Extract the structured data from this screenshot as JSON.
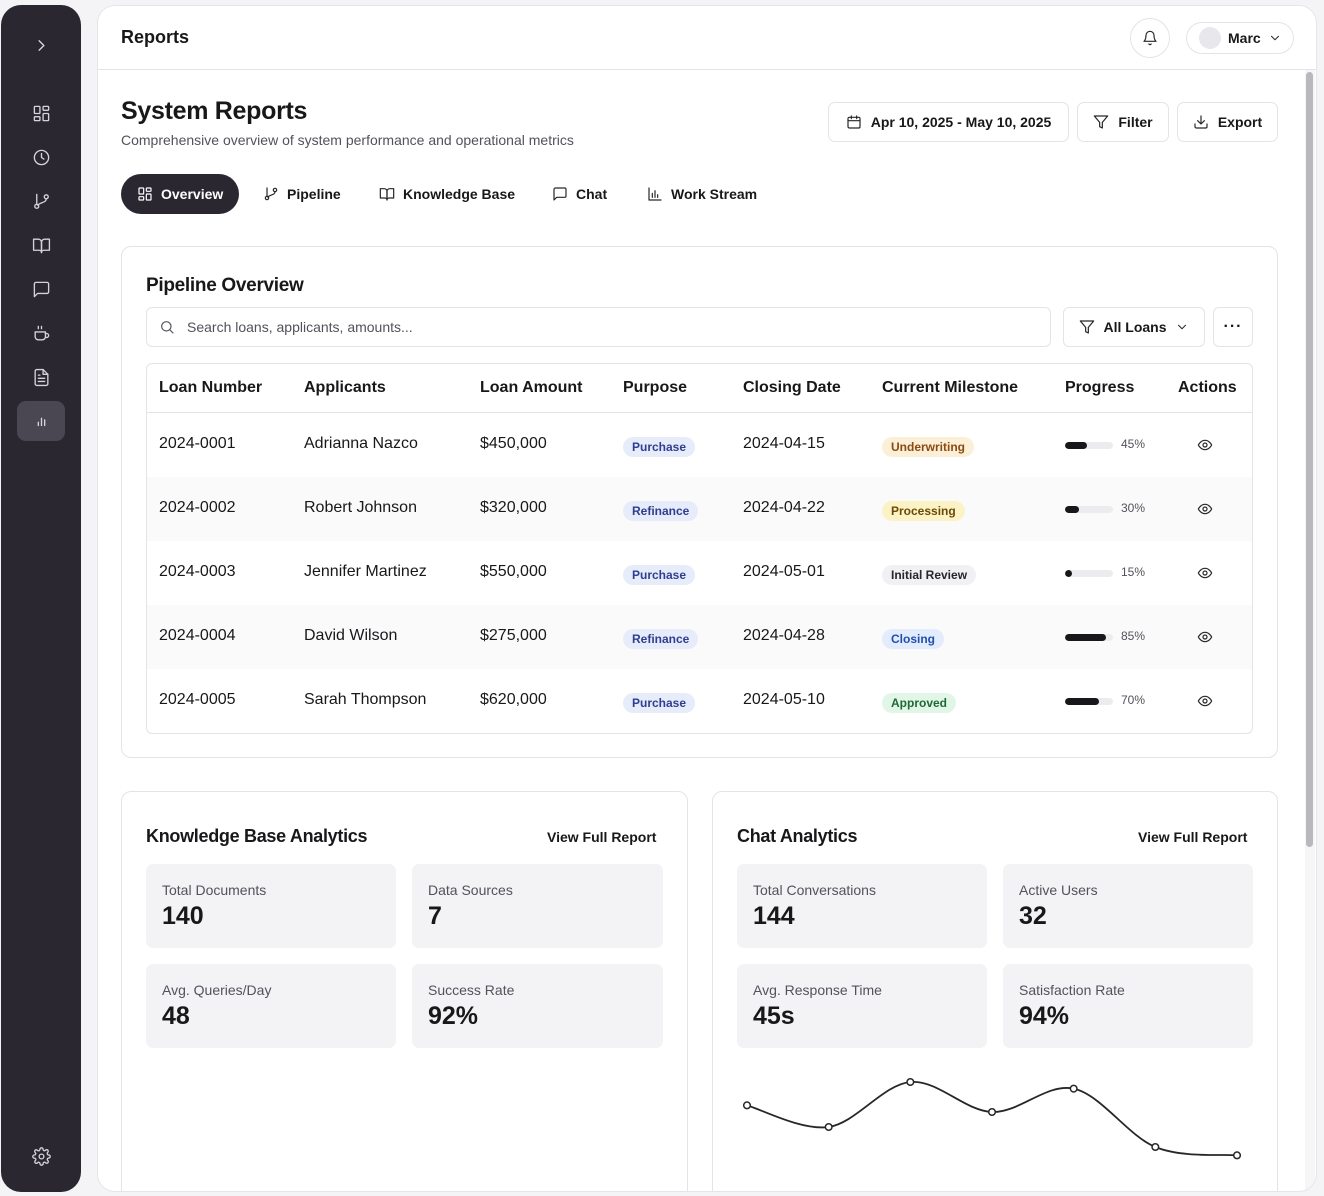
{
  "topbar": {
    "title": "Reports",
    "user_name": "Marc"
  },
  "header": {
    "title": "System Reports",
    "subtitle": "Comprehensive overview of system performance and operational metrics",
    "date_range": "Apr 10, 2025 - May 10, 2025",
    "filter_label": "Filter",
    "export_label": "Export"
  },
  "tabs": [
    {
      "label": "Overview",
      "icon": "grid-icon"
    },
    {
      "label": "Pipeline",
      "icon": "git-branch-icon"
    },
    {
      "label": "Knowledge Base",
      "icon": "book-icon"
    },
    {
      "label": "Chat",
      "icon": "chat-icon"
    },
    {
      "label": "Work Stream",
      "icon": "bar-chart-icon"
    }
  ],
  "sidebar": {
    "items": [
      "expand-icon",
      "dashboard-icon",
      "clock-icon",
      "git-branch-icon",
      "book-icon",
      "chat-icon",
      "coffee-icon",
      "document-icon",
      "bar-chart-icon",
      "settings-icon"
    ],
    "active": "bar-chart-icon"
  },
  "pipeline": {
    "title": "Pipeline Overview",
    "search_placeholder": "Search loans, applicants, amounts...",
    "loan_filter": "All Loans",
    "more_label": "···",
    "columns": [
      "Loan Number",
      "Applicants",
      "Loan Amount",
      "Purpose",
      "Closing Date",
      "Current Milestone",
      "Progress",
      "Actions"
    ],
    "rows": [
      {
        "loan": "2024-0001",
        "applicant": "Adrianna Nazco",
        "amount": "$450,000",
        "purpose": "Purchase",
        "date": "2024-04-15",
        "milestone": "Underwriting",
        "progress": 45,
        "progress_label": "45%"
      },
      {
        "loan": "2024-0002",
        "applicant": "Robert Johnson",
        "amount": "$320,000",
        "purpose": "Refinance",
        "date": "2024-04-22",
        "milestone": "Processing",
        "progress": 30,
        "progress_label": "30%"
      },
      {
        "loan": "2024-0003",
        "applicant": "Jennifer Martinez",
        "amount": "$550,000",
        "purpose": "Purchase",
        "date": "2024-05-01",
        "milestone": "Initial Review",
        "progress": 15,
        "progress_label": "15%"
      },
      {
        "loan": "2024-0004",
        "applicant": "David Wilson",
        "amount": "$275,000",
        "purpose": "Refinance",
        "date": "2024-04-28",
        "milestone": "Closing",
        "progress": 85,
        "progress_label": "85%"
      },
      {
        "loan": "2024-0005",
        "applicant": "Sarah Thompson",
        "amount": "$620,000",
        "purpose": "Purchase",
        "date": "2024-05-10",
        "milestone": "Approved",
        "progress": 70,
        "progress_label": "70%"
      }
    ]
  },
  "kb": {
    "title": "Knowledge Base Analytics",
    "link": "View Full Report",
    "stats": [
      {
        "label": "Total Documents",
        "value": "140"
      },
      {
        "label": "Data Sources",
        "value": "7"
      },
      {
        "label": "Avg. Queries/Day",
        "value": "48"
      },
      {
        "label": "Success Rate",
        "value": "92%"
      }
    ]
  },
  "chat": {
    "title": "Chat Analytics",
    "link": "View Full Report",
    "stats": [
      {
        "label": "Total Conversations",
        "value": "144"
      },
      {
        "label": "Active Users",
        "value": "32"
      },
      {
        "label": "Avg. Response Time",
        "value": "45s"
      },
      {
        "label": "Satisfaction Rate",
        "value": "94%"
      }
    ]
  },
  "chart_data": {
    "type": "line",
    "series": [
      {
        "values": [
          60,
          47,
          74,
          56,
          70,
          35,
          30
        ]
      }
    ],
    "ylim": [
      20,
      80
    ],
    "grid": false,
    "color": "#27272a"
  }
}
